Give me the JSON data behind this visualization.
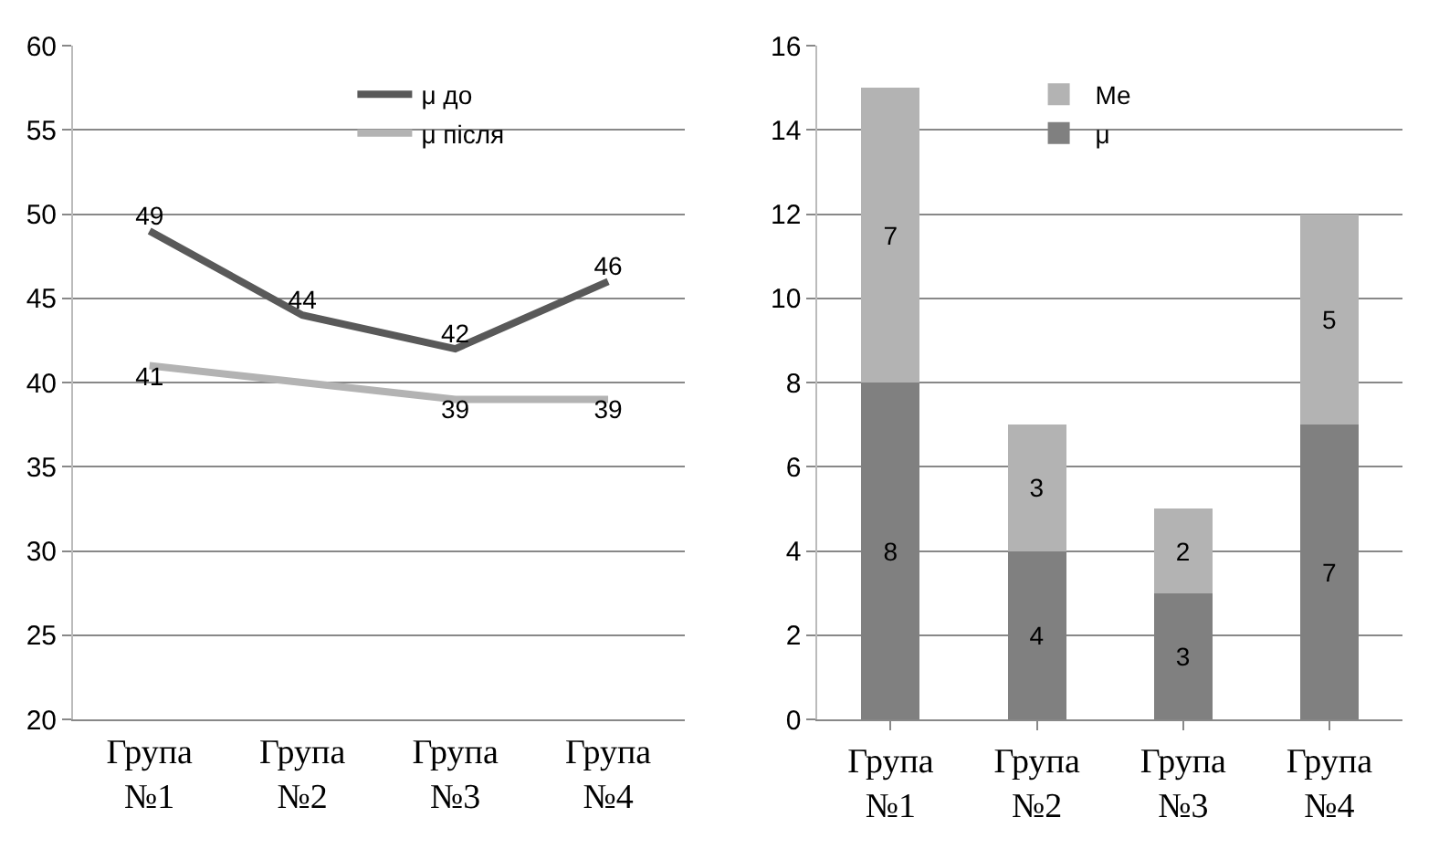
{
  "chart_data": [
    {
      "type": "line",
      "categories": [
        "Група №1",
        "Група №2",
        "Група №3",
        "Група №4"
      ],
      "ylim": [
        20,
        60
      ],
      "yticks": [
        20,
        25,
        30,
        35,
        40,
        45,
        50,
        55,
        60
      ],
      "grid": "y",
      "legend": "top",
      "marker": "none",
      "line_style": "solid",
      "series": [
        {
          "name": "μ до",
          "color": "#595959",
          "values": [
            49,
            44,
            42,
            46
          ],
          "value_labels": [
            "49",
            "44",
            "42",
            "46"
          ]
        },
        {
          "name": "μ після",
          "color": "#b3b3b3",
          "values": [
            41,
            40,
            39,
            39
          ],
          "value_labels": [
            "41",
            null,
            "39",
            "39"
          ]
        }
      ]
    },
    {
      "type": "bar",
      "stacked": true,
      "categories": [
        "Група №1",
        "Група №2",
        "Група №3",
        "Група №4"
      ],
      "ylim": [
        0,
        16
      ],
      "yticks": [
        0,
        2,
        4,
        6,
        8,
        10,
        12,
        14,
        16
      ],
      "grid": "y",
      "legend": "top",
      "data_labels": true,
      "series": [
        {
          "name": "μ",
          "color": "#808080",
          "values": [
            8,
            4,
            3,
            7
          ]
        },
        {
          "name": "Me",
          "color": "#b3b3b3",
          "values": [
            7,
            3,
            2,
            5
          ]
        }
      ]
    }
  ]
}
